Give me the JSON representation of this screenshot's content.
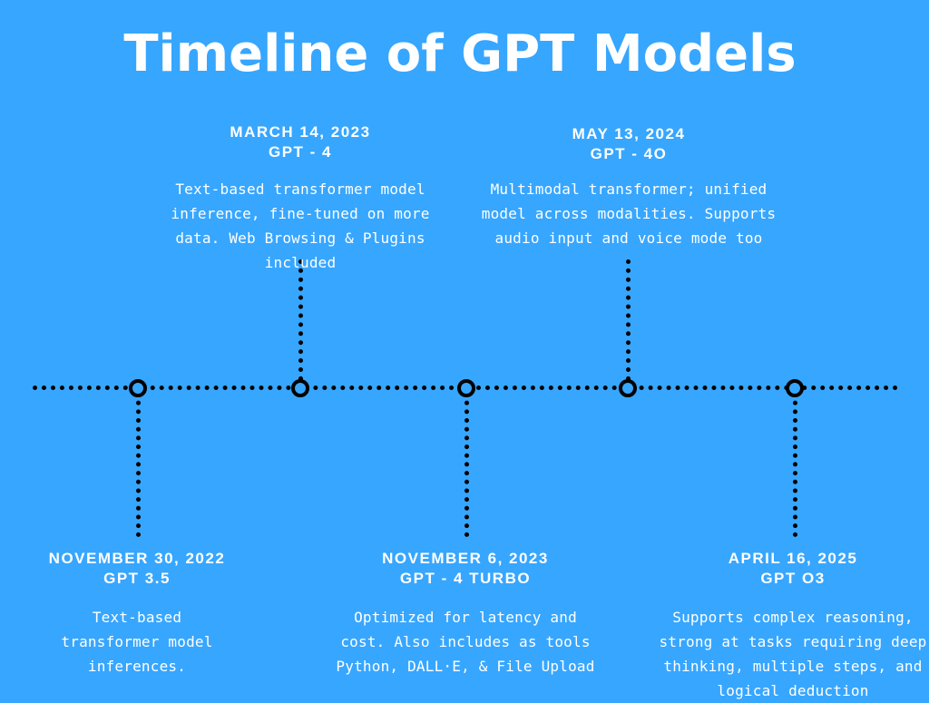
{
  "title": "Timeline of GPT Models",
  "events": [
    {
      "date": "NOVEMBER 30, 2022",
      "model": "GPT 3.5",
      "description": "Text-based transformer model inferences."
    },
    {
      "date": "MARCH 14, 2023",
      "model": "GPT - 4",
      "description": "Text-based transformer model inference, fine-tuned on more data. Web Browsing & Plugins included"
    },
    {
      "date": "NOVEMBER 6, 2023",
      "model": "GPT - 4 TURBO",
      "description": "Optimized for latency and cost. Also includes as tools Python, DALL·E, & File Upload"
    },
    {
      "date": "MAY 13, 2024",
      "model": "GPT - 4O",
      "description": "Multimodal transformer; unified model across modalities. Supports audio input and voice mode too"
    },
    {
      "date": "APRIL 16, 2025",
      "model": "GPT O3",
      "description": "Supports complex reasoning, strong at tasks requiring deep thinking, multiple steps, and logical deduction"
    }
  ]
}
